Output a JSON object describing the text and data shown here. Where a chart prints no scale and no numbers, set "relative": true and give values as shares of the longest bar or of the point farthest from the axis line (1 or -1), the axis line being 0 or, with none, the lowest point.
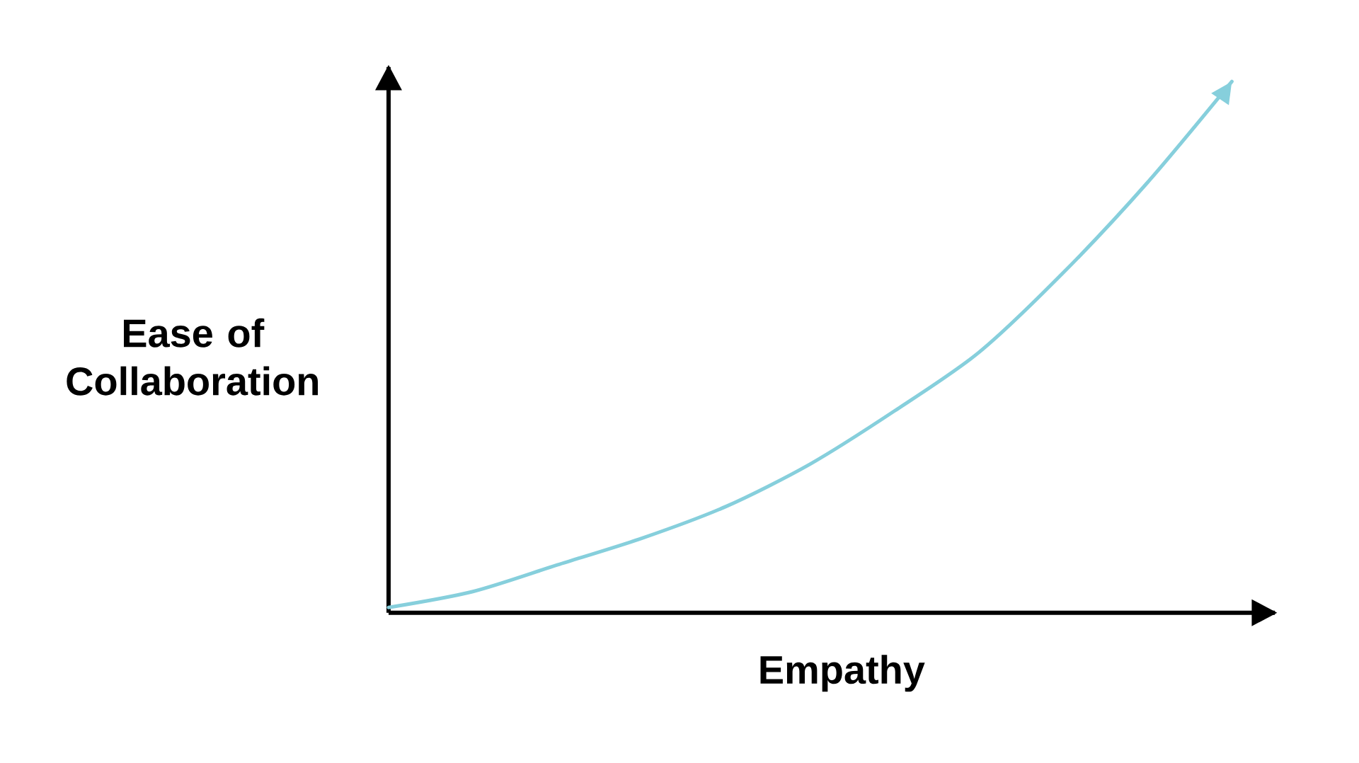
{
  "chart_data": {
    "type": "line",
    "relative": true,
    "xlabel": "Empathy",
    "ylabel": "Ease of Collaboration",
    "categories": [
      null,
      null,
      null,
      null,
      null,
      null,
      null,
      null,
      null,
      null,
      null
    ],
    "series": [
      {
        "color": "#86cfdc",
        "values": [
          0.01,
          0.04,
          0.09,
          0.14,
          0.2,
          0.28,
          0.38,
          0.49,
          0.64,
          0.81,
          1
        ]
      }
    ]
  }
}
